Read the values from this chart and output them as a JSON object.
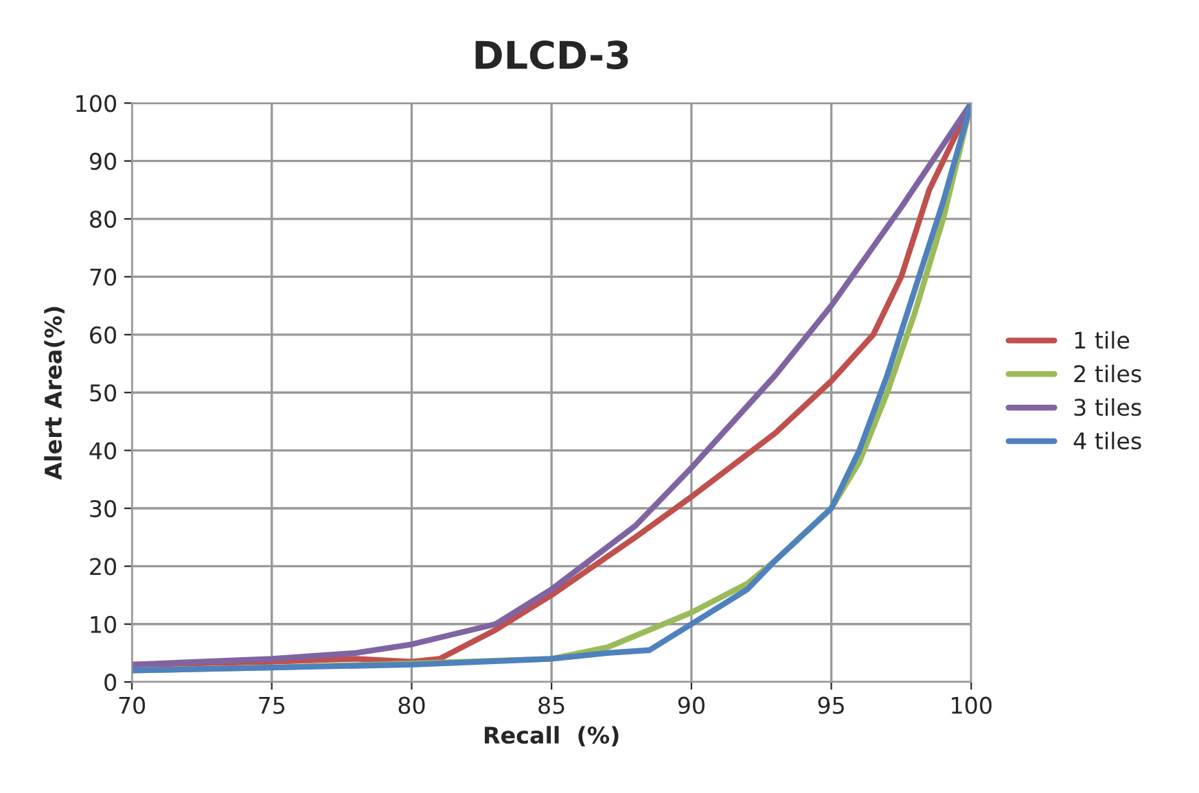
{
  "chart_data": {
    "type": "line",
    "title": "DLCD-3",
    "xlabel": "Recall  (%)",
    "ylabel": "Alert Area(%)",
    "xlim": [
      70,
      100
    ],
    "xticks": [
      70,
      75,
      80,
      85,
      90,
      95,
      100
    ],
    "ylim": [
      0,
      100
    ],
    "yticks": [
      0,
      10,
      20,
      30,
      40,
      50,
      60,
      70,
      80,
      90,
      100
    ],
    "grid": true,
    "legend": "right",
    "marker": "none",
    "line_style": "solid",
    "series": [
      {
        "name": "1 tile",
        "color": "#c0504d",
        "x": [
          70,
          75,
          78,
          80,
          81,
          83,
          85,
          88,
          90,
          93,
          95,
          96.5,
          97.5,
          98.5,
          100
        ],
        "values": [
          3,
          3.5,
          4,
          3.5,
          4,
          9,
          15,
          25,
          32,
          43,
          52,
          60,
          70,
          85,
          100
        ]
      },
      {
        "name": "2 tiles",
        "color": "#9bbb59",
        "x": [
          70,
          75,
          80,
          85,
          87,
          90,
          92,
          93,
          95,
          96,
          97,
          98,
          99,
          100
        ],
        "values": [
          2,
          2.5,
          3.2,
          4,
          6,
          12,
          17,
          21,
          30,
          38,
          50,
          64,
          80,
          100
        ]
      },
      {
        "name": "3 tiles",
        "color": "#8064a2",
        "x": [
          70,
          75,
          78,
          80,
          83,
          85,
          88,
          90,
          93,
          95,
          97.5,
          100
        ],
        "values": [
          3,
          4,
          5,
          6.5,
          10,
          16,
          27,
          37,
          53,
          65,
          82,
          100
        ]
      },
      {
        "name": "4 tiles",
        "color": "#4f81bd",
        "x": [
          70,
          75,
          80,
          85,
          87,
          88.5,
          90,
          92,
          93,
          95,
          96,
          97,
          98,
          99,
          100
        ],
        "values": [
          2,
          2.5,
          3,
          4,
          5,
          5.5,
          10,
          16,
          21,
          30,
          40,
          53,
          68,
          83,
          100
        ]
      }
    ]
  }
}
